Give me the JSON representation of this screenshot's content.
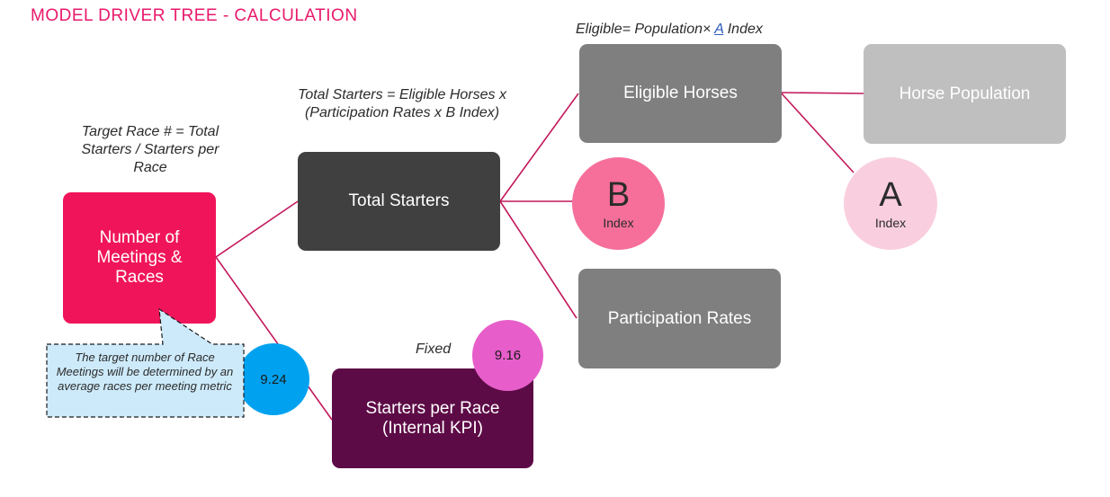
{
  "title": "MODEL DRIVER TREE - CALCULATION",
  "formulas": {
    "target_race": "Target Race # = Total Starters / Starters per Race",
    "total_starters": "Total Starters = Eligible Horses x (Participation Rates x B Index)",
    "eligible_prefix": "Eligible= Population×",
    "eligible_link": "A",
    "eligible_suffix": "Index",
    "fixed": "Fixed"
  },
  "nodes": {
    "meetings_races": "Number of Meetings & Races",
    "total_starters": "Total Starters",
    "eligible_horses": "Eligible Horses",
    "horse_population": "Horse Population",
    "participation_rates": "Participation Rates",
    "starters_per_race": "Starters per Race (Internal KPI)"
  },
  "circles": {
    "b_letter": "B",
    "b_label": "Index",
    "a_letter": "A",
    "a_label": "Index",
    "value_924": "9.24",
    "value_916": "9.16"
  },
  "callout": "The target number of Race Meetings will be determined by an average races per meeting metric",
  "colors": {
    "brand_pink": "#e8196b",
    "meetings_box": "#f0155b",
    "dark_box": "#404040",
    "grey_box": "#7f7f7f",
    "light_grey_box": "#bfbfbf",
    "purple_box": "#5d0b46",
    "b_circle": "#f56f9a",
    "a_circle": "#f9cfdf",
    "blue_circle": "#00a2f0",
    "magenta_circle": "#e75ecb",
    "callout_fill": "#cdeafa",
    "connector": "#c2185b"
  }
}
